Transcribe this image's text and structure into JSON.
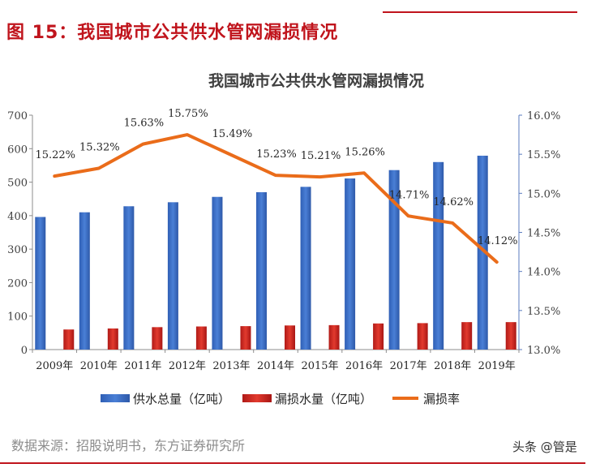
{
  "figure_title": "图 15：我国城市公共供水管网漏损情况",
  "source": "数据来源：招股说明书，东方证券研究所",
  "watermark": "头条 @管是",
  "colors": {
    "brand_red": "#c0141c",
    "supply_bar": "#3f6fc4",
    "leak_bar": "#d22a22",
    "leak_rate_line": "#ea6c1a",
    "right_axis": "#5a7bbf"
  },
  "chart_data": {
    "type": "bar",
    "title": "我国城市公共供水管网漏损情况",
    "categories": [
      "2009年",
      "2010年",
      "2011年",
      "2012年",
      "2013年",
      "2014年",
      "2015年",
      "2016年",
      "2017年",
      "2018年",
      "2019年"
    ],
    "series": [
      {
        "name": "供水总量（亿吨）",
        "type": "bar",
        "axis": "left",
        "values": [
          396,
          410,
          428,
          440,
          456,
          470,
          486,
          511,
          536,
          560,
          579
        ]
      },
      {
        "name": "漏损水量（亿吨）",
        "type": "bar",
        "axis": "left",
        "values": [
          60,
          63,
          67,
          69,
          70,
          72,
          73,
          78,
          79,
          82,
          82
        ]
      },
      {
        "name": "漏损率",
        "type": "line",
        "axis": "right",
        "values": [
          15.22,
          15.32,
          15.63,
          15.75,
          15.49,
          15.23,
          15.21,
          15.26,
          14.71,
          14.62,
          14.12
        ],
        "labels": [
          "15.22%",
          "15.32%",
          "15.63%",
          "15.75%",
          "15.49%",
          "15.23%",
          "15.21%",
          "15.26%",
          "14.71%",
          "14.62%",
          "14.12%"
        ]
      }
    ],
    "y_left": {
      "ylim": [
        0,
        700
      ],
      "ticks": [
        "0",
        "100",
        "200",
        "300",
        "400",
        "500",
        "600",
        "700"
      ]
    },
    "y_right": {
      "ylim": [
        13.0,
        16.0
      ],
      "ticks": [
        "13.0%",
        "13.5%",
        "14.0%",
        "14.5%",
        "15.0%",
        "15.5%",
        "16.0%"
      ]
    },
    "grid": false,
    "legend_position": "bottom"
  }
}
